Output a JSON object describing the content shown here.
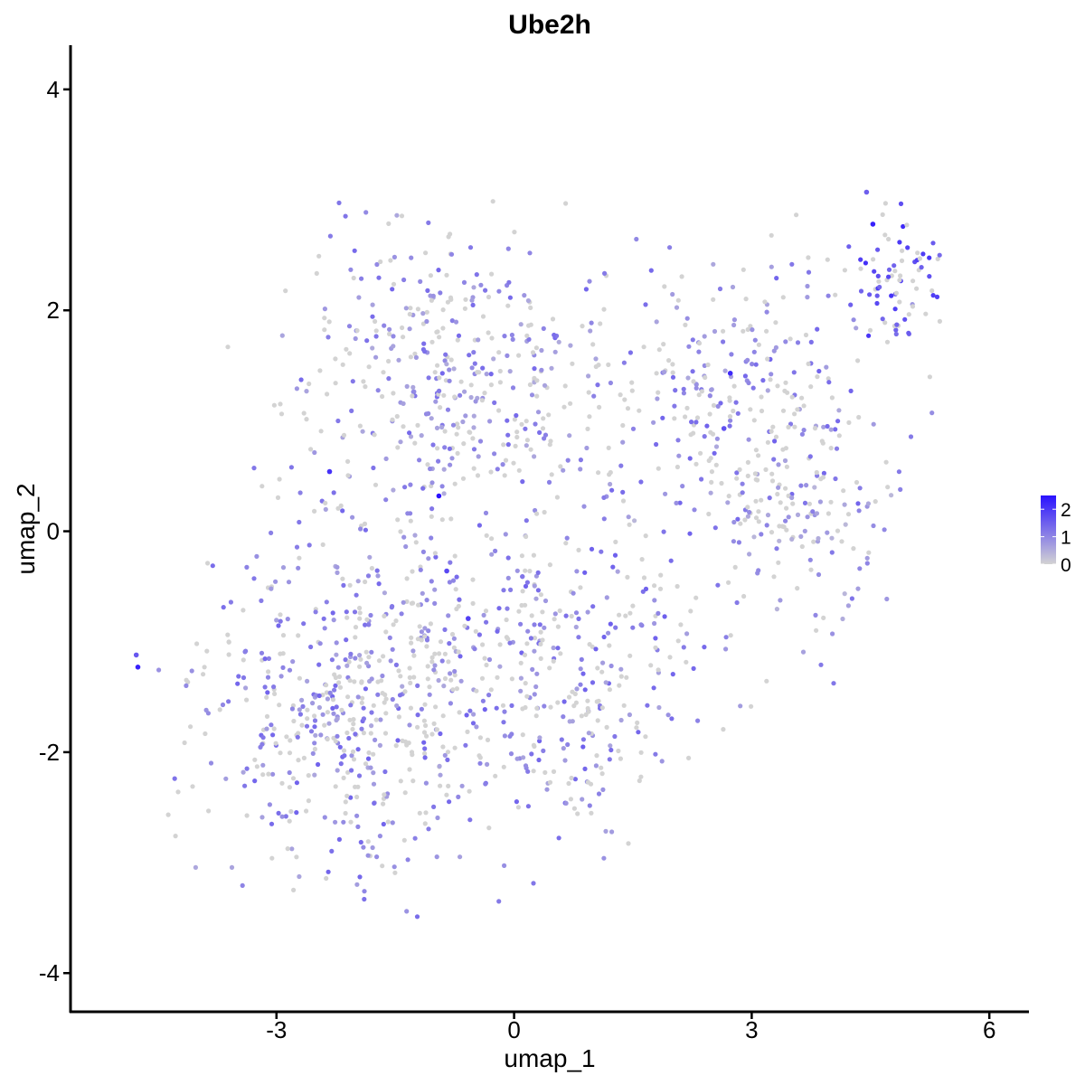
{
  "chart_data": {
    "type": "scatter",
    "title": "Ube2h",
    "xlabel": "umap_1",
    "ylabel": "umap_2",
    "xlim": [
      -5.6,
      6.5
    ],
    "ylim": [
      -4.35,
      4.4
    ],
    "xticks": [
      -3,
      0,
      3,
      6
    ],
    "yticks": [
      -4,
      -2,
      0,
      2,
      4
    ],
    "xtick_labels": [
      "-3",
      "0",
      "3",
      "6"
    ],
    "ytick_labels": [
      "-4",
      "-2",
      "0",
      "2",
      "4"
    ],
    "grid": false,
    "legend": {
      "position": "right",
      "type": "colorbar",
      "range": [
        0,
        2.5
      ],
      "ticks": [
        0,
        1,
        2
      ],
      "tick_labels": [
        "0",
        "1",
        "2"
      ],
      "colors": {
        "low": "#d3d3d3",
        "high": "#2a12ff"
      }
    },
    "point_color_low": "#d3d3d3",
    "point_color_high": "#2a12ff",
    "highlighted_points": [
      {
        "x": -0.95,
        "y": 0.32,
        "value": 2.5
      },
      {
        "x": -4.75,
        "y": -1.23,
        "value": 2.3
      },
      {
        "x": -4.77,
        "y": -1.12,
        "value": 1.6
      },
      {
        "x": -2.33,
        "y": 0.54,
        "value": 2.1
      },
      {
        "x": -0.85,
        "y": -0.36,
        "value": 1.8
      },
      {
        "x": -0.58,
        "y": -0.79,
        "value": 1.9
      },
      {
        "x": 2.73,
        "y": 1.43,
        "value": 2.2
      },
      {
        "x": 4.53,
        "y": 2.78,
        "value": 2.3
      },
      {
        "x": 2.65,
        "y": 0.93,
        "value": 1.7
      },
      {
        "x": 4.45,
        "y": 3.07,
        "value": 1.5
      }
    ],
    "clusters": [
      {
        "x": -2.1,
        "y": -1.6,
        "sx": 1.25,
        "sy": 1.05,
        "n": 560,
        "mean": 0.55
      },
      {
        "x": -0.8,
        "y": 1.3,
        "sx": 1.35,
        "sy": 1.0,
        "n": 430,
        "mean": 0.5
      },
      {
        "x": 0.6,
        "y": -1.3,
        "sx": 1.2,
        "sy": 0.9,
        "n": 360,
        "mean": 0.6
      },
      {
        "x": 2.8,
        "y": 1.2,
        "sx": 1.25,
        "sy": 0.8,
        "n": 300,
        "mean": 0.55
      },
      {
        "x": 4.8,
        "y": 2.3,
        "sx": 0.35,
        "sy": 0.45,
        "n": 80,
        "mean": 1.3
      },
      {
        "x": 3.6,
        "y": 0.0,
        "sx": 0.9,
        "sy": 0.6,
        "n": 120,
        "mean": 0.35
      }
    ]
  }
}
